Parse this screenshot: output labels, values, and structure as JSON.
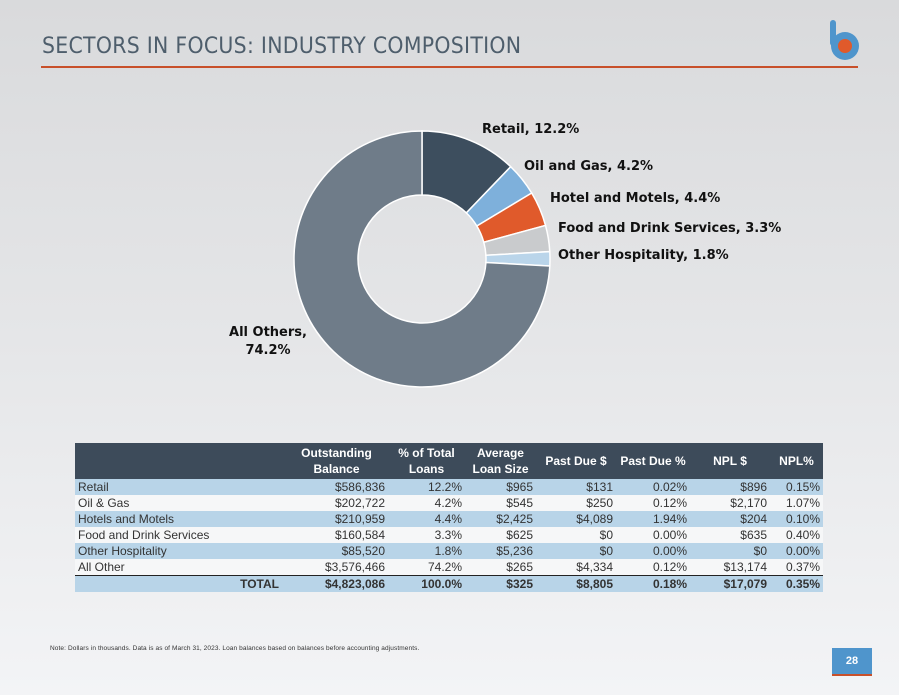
{
  "page": {
    "title": "SECTORS IN FOCUS: INDUSTRY COMPOSITION",
    "page_number": "28",
    "note": "Note: Dollars in thousands. Data is as of March 31, 2023. Loan balances based on balances before accounting adjustments.",
    "accent_color": "#c8502a",
    "brand_color": "#4f95cc",
    "logo_icon": "brand-logo-b"
  },
  "chart_data": {
    "type": "pie",
    "donut": true,
    "title": "",
    "slices": [
      {
        "name": "Retail",
        "value": 12.2,
        "label": "Retail, 12.2%",
        "color": "#3d4e5e"
      },
      {
        "name": "Oil and Gas",
        "value": 4.2,
        "label": "Oil and Gas, 4.2%",
        "color": "#7eb0db"
      },
      {
        "name": "Hotel and Motels",
        "value": 4.4,
        "label": "Hotel and Motels, 4.4%",
        "color": "#e05a2b"
      },
      {
        "name": "Food and Drink Services",
        "value": 3.3,
        "label": "Food and Drink Services, 3.3%",
        "color": "#c9cbcd"
      },
      {
        "name": "Other Hospitality",
        "value": 1.8,
        "label": "Other Hospitality, 1.8%",
        "color": "#bad5ea"
      },
      {
        "name": "All Others",
        "value": 74.2,
        "label_line1": "All Others,",
        "label_line2": "74.2%",
        "color": "#6f7c89"
      }
    ]
  },
  "table": {
    "headers": [
      {
        "line1": "",
        "line2": ""
      },
      {
        "line1": "Outstanding",
        "line2": "Balance"
      },
      {
        "line1": "% of Total",
        "line2": "Loans"
      },
      {
        "line1": "Average",
        "line2": "Loan Size"
      },
      {
        "line1": "Past Due $",
        "line2": ""
      },
      {
        "line1": "Past Due %",
        "line2": ""
      },
      {
        "line1": "NPL $",
        "line2": ""
      },
      {
        "line1": "NPL%",
        "line2": ""
      }
    ],
    "rows": [
      [
        "Retail",
        "$586,836",
        "12.2%",
        "$965",
        "$131",
        "0.02%",
        "$896",
        "0.15%"
      ],
      [
        "Oil & Gas",
        "$202,722",
        "4.2%",
        "$545",
        "$250",
        "0.12%",
        "$2,170",
        "1.07%"
      ],
      [
        "Hotels and Motels",
        "$210,959",
        "4.4%",
        "$2,425",
        "$4,089",
        "1.94%",
        "$204",
        "0.10%"
      ],
      [
        "Food and Drink Services",
        "$160,584",
        "3.3%",
        "$625",
        "$0",
        "0.00%",
        "$635",
        "0.40%"
      ],
      [
        "Other Hospitality",
        "$85,520",
        "1.8%",
        "$5,236",
        "$0",
        "0.00%",
        "$0",
        "0.00%"
      ],
      [
        "All Other",
        "$3,576,466",
        "74.2%",
        "$265",
        "$4,334",
        "0.12%",
        "$13,174",
        "0.37%"
      ]
    ],
    "total": [
      "TOTAL",
      "$4,823,086",
      "100.0%",
      "$325",
      "$8,805",
      "0.18%",
      "$17,079",
      "0.35%"
    ]
  }
}
